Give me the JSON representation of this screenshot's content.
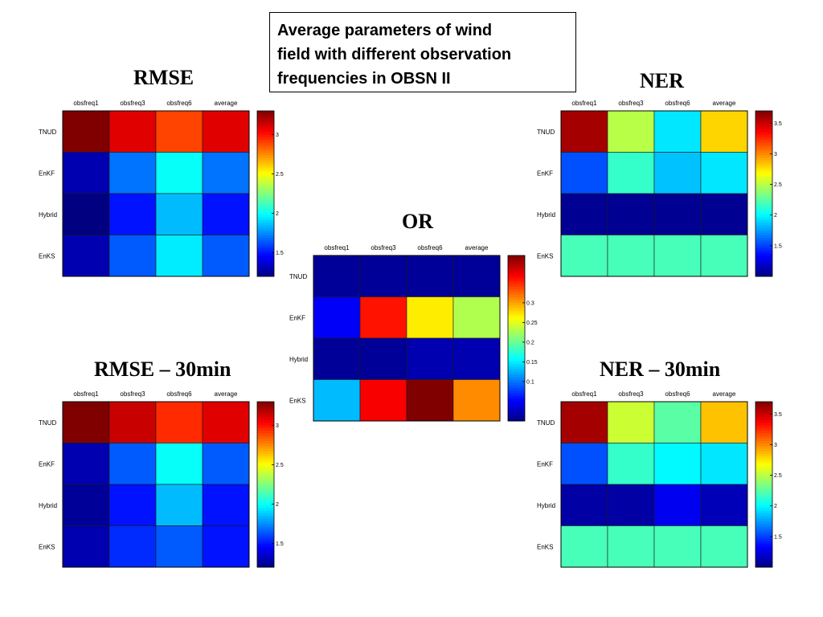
{
  "header": {
    "title_line1": "Average parameters of wind",
    "title_line2": "field with different observation",
    "title_line3": "frequencies in OBSN II"
  },
  "chart_data": [
    {
      "id": "rmse",
      "type": "heatmap",
      "title": "RMSE",
      "x_categories": [
        "obsfreq1",
        "obsfreq3",
        "obsfreq6",
        "average"
      ],
      "y_categories": [
        "TNUD",
        "EnKF",
        "Hybrid",
        "EnKS"
      ],
      "values": [
        [
          3.3,
          3.1,
          2.9,
          3.1
        ],
        [
          1.3,
          1.7,
          2.0,
          1.7
        ],
        [
          1.2,
          1.5,
          1.85,
          1.5
        ],
        [
          1.3,
          1.65,
          1.95,
          1.65
        ]
      ],
      "clim": [
        1.2,
        3.3
      ],
      "colorbar_ticks": [
        1.5,
        2,
        2.5,
        3
      ],
      "colorbar_ticklabels": [
        "1.5",
        "2",
        "2.5",
        "3"
      ],
      "colormap": "jet"
    },
    {
      "id": "ner",
      "type": "heatmap",
      "title": "NER",
      "x_categories": [
        "obsfreq1",
        "obsfreq3",
        "obsfreq6",
        "average"
      ],
      "y_categories": [
        "TNUD",
        "EnKF",
        "Hybrid",
        "EnKS"
      ],
      "values": [
        [
          3.6,
          2.5,
          1.95,
          2.8
        ],
        [
          1.55,
          2.15,
          1.85,
          1.95
        ],
        [
          1.05,
          1.05,
          1.05,
          1.05
        ],
        [
          2.2,
          2.2,
          2.2,
          2.2
        ]
      ],
      "clim": [
        1.0,
        3.7
      ],
      "colorbar_ticks": [
        1.5,
        2,
        2.5,
        3,
        3.5
      ],
      "colorbar_ticklabels": [
        "1.5",
        "2",
        "2.5",
        "3",
        "3.5"
      ],
      "colormap": "jet"
    },
    {
      "id": "or",
      "type": "heatmap",
      "title": "OR",
      "x_categories": [
        "obsfreq1",
        "obsfreq3",
        "obsfreq6",
        "average"
      ],
      "y_categories": [
        "TNUD",
        "EnKF",
        "Hybrid",
        "EnKS"
      ],
      "values": [
        [
          0.01,
          0.01,
          0.01,
          0.01
        ],
        [
          0.05,
          0.36,
          0.27,
          0.23
        ],
        [
          0.01,
          0.01,
          0.02,
          0.02
        ],
        [
          0.13,
          0.37,
          0.42,
          0.31
        ]
      ],
      "clim": [
        0.0,
        0.42
      ],
      "colorbar_ticks": [
        0.1,
        0.15,
        0.2,
        0.25,
        0.3
      ],
      "colorbar_ticklabels": [
        "0.1",
        "0.15",
        "0.2",
        "0.25",
        "0.3"
      ],
      "colormap": "jet"
    },
    {
      "id": "rmse30",
      "type": "heatmap",
      "title": "RMSE – 30min",
      "x_categories": [
        "obsfreq1",
        "obsfreq3",
        "obsfreq6",
        "average"
      ],
      "y_categories": [
        "TNUD",
        "EnKF",
        "Hybrid",
        "EnKS"
      ],
      "values": [
        [
          3.3,
          3.15,
          2.95,
          3.1
        ],
        [
          1.3,
          1.65,
          2.0,
          1.65
        ],
        [
          1.25,
          1.5,
          1.85,
          1.5
        ],
        [
          1.3,
          1.55,
          1.65,
          1.5
        ]
      ],
      "clim": [
        1.2,
        3.3
      ],
      "colorbar_ticks": [
        1.5,
        2,
        2.5,
        3
      ],
      "colorbar_ticklabels": [
        "1.5",
        "2",
        "2.5",
        "3"
      ],
      "colormap": "jet"
    },
    {
      "id": "ner30",
      "type": "heatmap",
      "title": "NER – 30min",
      "x_categories": [
        "obsfreq1",
        "obsfreq3",
        "obsfreq6",
        "average"
      ],
      "y_categories": [
        "TNUD",
        "EnKF",
        "Hybrid",
        "EnKS"
      ],
      "values": [
        [
          3.6,
          2.55,
          2.25,
          2.85
        ],
        [
          1.55,
          2.15,
          2.0,
          1.95
        ],
        [
          1.1,
          1.1,
          1.3,
          1.15
        ],
        [
          2.2,
          2.2,
          2.2,
          2.2
        ]
      ],
      "clim": [
        1.0,
        3.7
      ],
      "colorbar_ticks": [
        1.5,
        2,
        2.5,
        3,
        3.5
      ],
      "colorbar_ticklabels": [
        "1.5",
        "2",
        "2.5",
        "3",
        "3.5"
      ],
      "colormap": "jet"
    }
  ]
}
